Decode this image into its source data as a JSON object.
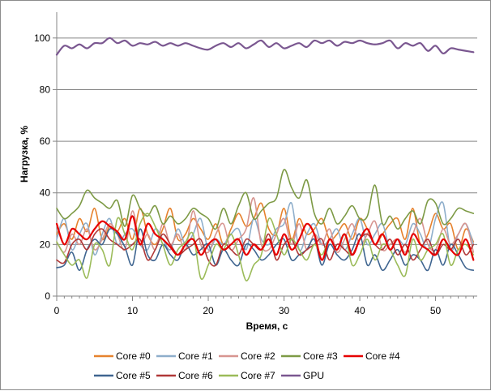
{
  "chart_data": {
    "type": "line",
    "xlabel": "Время, с",
    "ylabel": "Нагрузка, %",
    "xlim": [
      0,
      55.5
    ],
    "ylim": [
      0,
      110
    ],
    "x_ticks": [
      0,
      10,
      20,
      30,
      40,
      50
    ],
    "y_ticks": [
      0,
      20,
      40,
      60,
      80,
      100
    ],
    "grid": "horizontal",
    "legend_position": "bottom",
    "x": [
      0,
      1,
      2,
      3,
      4,
      5,
      6,
      7,
      8,
      9,
      10,
      11,
      12,
      13,
      14,
      15,
      16,
      17,
      18,
      19,
      20,
      21,
      22,
      23,
      24,
      25,
      26,
      27,
      28,
      29,
      30,
      31,
      32,
      33,
      34,
      35,
      36,
      37,
      38,
      39,
      40,
      41,
      42,
      43,
      44,
      45,
      46,
      47,
      48,
      49,
      50,
      51,
      52,
      53,
      54,
      55
    ],
    "series": [
      {
        "name": "Core #0",
        "color": "#e6822e",
        "width": 1.6,
        "values": [
          24,
          28,
          22,
          30,
          25,
          34,
          22,
          27,
          25,
          30,
          22,
          34,
          24,
          20,
          26,
          34,
          22,
          24,
          30,
          26,
          22,
          28,
          20,
          26,
          32,
          27,
          30,
          36,
          26,
          24,
          34,
          22,
          30,
          24,
          26,
          30,
          22,
          24,
          28,
          22,
          30,
          26,
          20,
          24,
          28,
          30,
          22,
          34,
          20,
          24,
          32,
          26,
          28,
          18,
          26,
          21
        ]
      },
      {
        "name": "Core #1",
        "color": "#8eaecb",
        "width": 1.6,
        "values": [
          22,
          30,
          18,
          24,
          28,
          16,
          24,
          30,
          20,
          24,
          26,
          20,
          18,
          26,
          22,
          18,
          26,
          20,
          24,
          30,
          18,
          22,
          20,
          24,
          26,
          18,
          30,
          22,
          20,
          26,
          28,
          36,
          18,
          24,
          28,
          20,
          22,
          26,
          18,
          24,
          30,
          20,
          24,
          28,
          18,
          22,
          20,
          28,
          24,
          18,
          30,
          36,
          18,
          24,
          28,
          20
        ]
      },
      {
        "name": "Core #2",
        "color": "#d79590",
        "width": 1.6,
        "values": [
          21,
          17,
          24,
          20,
          26,
          18,
          22,
          28,
          24,
          18,
          33,
          20,
          24,
          18,
          28,
          20,
          24,
          18,
          33,
          20,
          17,
          24,
          28,
          18,
          22,
          26,
          38,
          20,
          18,
          24,
          30,
          20,
          28,
          18,
          24,
          20,
          26,
          17,
          22,
          28,
          20,
          24,
          29,
          18,
          20,
          22,
          17,
          24,
          30,
          20,
          18,
          26,
          20,
          24,
          28,
          17
        ]
      },
      {
        "name": "Core #3",
        "color": "#7d9a45",
        "width": 1.6,
        "values": [
          34,
          30,
          32,
          35,
          41,
          38,
          36,
          34,
          37,
          27,
          39,
          34,
          31,
          35,
          28,
          31,
          28,
          30,
          34,
          32,
          30,
          26,
          34,
          28,
          35,
          40,
          30,
          33,
          36,
          38,
          49,
          42,
          38,
          45,
          32,
          28,
          34,
          28,
          31,
          35,
          30,
          31,
          43,
          28,
          31,
          26,
          30,
          33,
          28,
          37,
          36,
          28,
          30,
          34,
          33,
          32
        ]
      },
      {
        "name": "Core #4",
        "color": "#e60000",
        "width": 2.2,
        "values": [
          28,
          20,
          26,
          24,
          22,
          26,
          29,
          27,
          25,
          22,
          31,
          20,
          28,
          24,
          22,
          19,
          16,
          20,
          22,
          16,
          20,
          22,
          18,
          20,
          22,
          16,
          20,
          18,
          22,
          16,
          24,
          18,
          22,
          28,
          24,
          14,
          22,
          18,
          24,
          16,
          22,
          26,
          20,
          24,
          18,
          22,
          16,
          24,
          20,
          18,
          16,
          22,
          18,
          16,
          22,
          14
        ]
      },
      {
        "name": "Core #5",
        "color": "#3f6590",
        "width": 1.6,
        "values": [
          11,
          12,
          17,
          10,
          18,
          22,
          20,
          26,
          24,
          19,
          12,
          26,
          16,
          14,
          20,
          16,
          14,
          20,
          16,
          18,
          20,
          12,
          18,
          14,
          12,
          20,
          18,
          14,
          16,
          20,
          22,
          14,
          16,
          18,
          22,
          12,
          20,
          16,
          14,
          18,
          24,
          12,
          16,
          10,
          14,
          18,
          12,
          16,
          14,
          10,
          18,
          12,
          20,
          16,
          11,
          10
        ]
      },
      {
        "name": "Core #6",
        "color": "#b03838",
        "width": 1.6,
        "values": [
          14,
          13,
          20,
          22,
          18,
          24,
          26,
          22,
          20,
          18,
          20,
          22,
          14,
          18,
          24,
          20,
          16,
          18,
          20,
          22,
          14,
          12,
          20,
          18,
          16,
          22,
          20,
          18,
          24,
          14,
          20,
          22,
          16,
          18,
          20,
          22,
          14,
          20,
          18,
          16,
          22,
          24,
          20,
          18,
          22,
          16,
          20,
          14,
          18,
          22,
          16,
          20,
          18,
          22,
          16,
          20
        ]
      },
      {
        "name": "Core #7",
        "color": "#9bbb59",
        "width": 1.6,
        "values": [
          21,
          16,
          12,
          14,
          7,
          20,
          18,
          12,
          30,
          24,
          18,
          28,
          32,
          27,
          20,
          12,
          18,
          21,
          24,
          7,
          12,
          20,
          18,
          24,
          16,
          6,
          12,
          16,
          30,
          24,
          16,
          22,
          18,
          14,
          20,
          16,
          22,
          18,
          24,
          12,
          16,
          22,
          14,
          20,
          18,
          12,
          8,
          22,
          14,
          18,
          20,
          24,
          12,
          18,
          20,
          16
        ]
      },
      {
        "name": "GPU",
        "color": "#7a5790",
        "width": 2.2,
        "values": [
          93.5,
          97,
          96,
          97.5,
          96,
          98,
          98,
          100,
          98,
          99,
          97,
          98,
          97.5,
          98.5,
          97,
          98,
          97,
          98,
          97,
          96,
          95.5,
          97,
          98,
          96.5,
          98,
          96,
          97.5,
          99,
          96.5,
          98,
          96,
          97,
          98,
          96.5,
          99,
          98,
          99,
          97,
          98.5,
          98,
          99,
          98,
          97.5,
          98,
          99,
          96,
          98,
          97,
          98,
          95,
          97,
          94,
          96,
          95.5,
          95,
          94.5
        ]
      }
    ]
  }
}
